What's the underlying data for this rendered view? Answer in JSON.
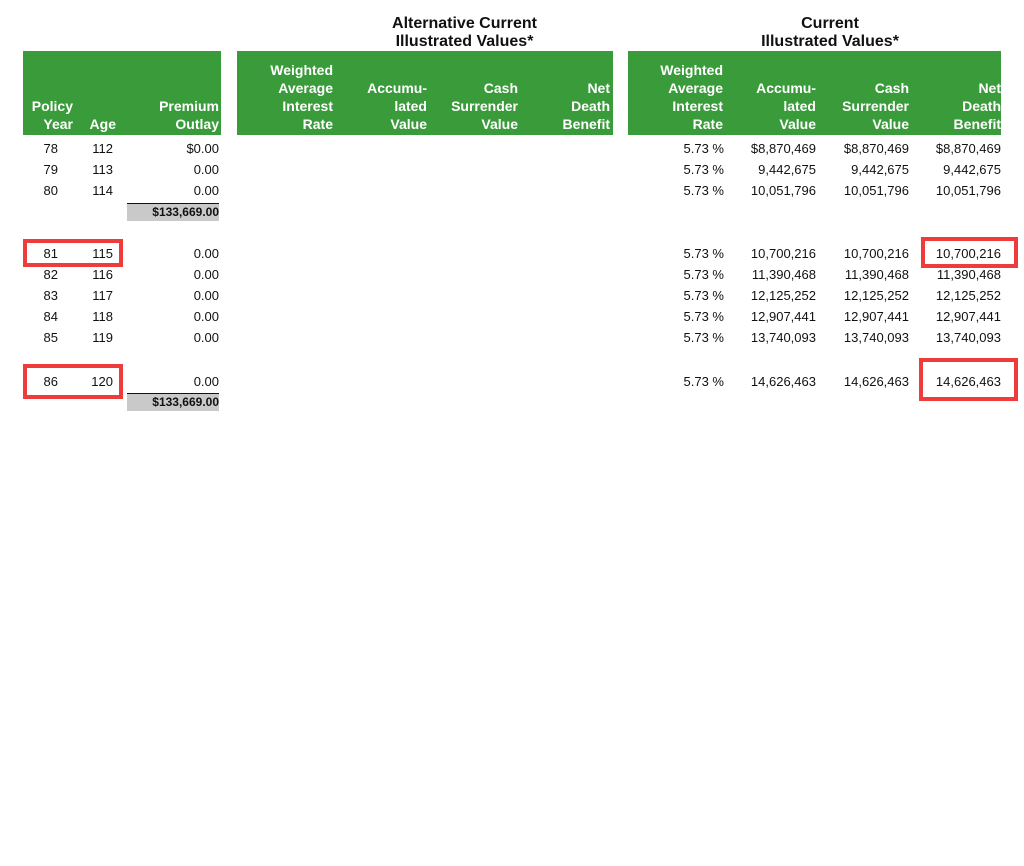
{
  "titles": {
    "alternative": {
      "line1": "Alternative Current",
      "line2": "Illustrated Values*"
    },
    "current": {
      "line1": "Current",
      "line2": "Illustrated Values*"
    }
  },
  "headers": {
    "left": {
      "policy_year": [
        "Policy",
        "Year"
      ],
      "age": [
        "Age"
      ],
      "premium_outlay": [
        "Premium",
        "Outlay"
      ]
    },
    "alternative": {
      "interest_rate": [
        "Weighted",
        "Average",
        "Interest",
        "Rate"
      ],
      "accumulated_value": [
        "Accumu-",
        "lated",
        "Value"
      ],
      "cash_surrender_value": [
        "Cash",
        "Surrender",
        "Value"
      ],
      "net_death_benefit": [
        "Net",
        "Death",
        "Benefit"
      ]
    },
    "current": {
      "interest_rate": [
        "Weighted",
        "Average",
        "Interest",
        "Rate"
      ],
      "accumulated_value": [
        "Accumu-",
        "lated",
        "Value"
      ],
      "cash_surrender_value": [
        "Cash",
        "Surrender",
        "Value"
      ],
      "net_death_benefit": [
        "Net",
        "Death",
        "Benefit"
      ]
    }
  },
  "rows": [
    {
      "year": "78",
      "age": "112",
      "premium": "$0.00",
      "rate": "5.73 %",
      "accumulated": "$8,870,469",
      "cash_surrender": "$8,870,469",
      "death_benefit": "$8,870,469"
    },
    {
      "year": "79",
      "age": "113",
      "premium": "0.00",
      "rate": "5.73 %",
      "accumulated": "9,442,675",
      "cash_surrender": "9,442,675",
      "death_benefit": "9,442,675"
    },
    {
      "year": "80",
      "age": "114",
      "premium": "0.00",
      "rate": "5.73 %",
      "accumulated": "10,051,796",
      "cash_surrender": "10,051,796",
      "death_benefit": "10,051,796"
    },
    {
      "year": "81",
      "age": "115",
      "premium": "0.00",
      "rate": "5.73 %",
      "accumulated": "10,700,216",
      "cash_surrender": "10,700,216",
      "death_benefit": "10,700,216"
    },
    {
      "year": "82",
      "age": "116",
      "premium": "0.00",
      "rate": "5.73 %",
      "accumulated": "11,390,468",
      "cash_surrender": "11,390,468",
      "death_benefit": "11,390,468"
    },
    {
      "year": "83",
      "age": "117",
      "premium": "0.00",
      "rate": "5.73 %",
      "accumulated": "12,125,252",
      "cash_surrender": "12,125,252",
      "death_benefit": "12,125,252"
    },
    {
      "year": "84",
      "age": "118",
      "premium": "0.00",
      "rate": "5.73 %",
      "accumulated": "12,907,441",
      "cash_surrender": "12,907,441",
      "death_benefit": "12,907,441"
    },
    {
      "year": "85",
      "age": "119",
      "premium": "0.00",
      "rate": "5.73 %",
      "accumulated": "13,740,093",
      "cash_surrender": "13,740,093",
      "death_benefit": "13,740,093"
    },
    {
      "year": "86",
      "age": "120",
      "premium": "0.00",
      "rate": "5.73 %",
      "accumulated": "14,626,463",
      "cash_surrender": "14,626,463",
      "death_benefit": "14,626,463"
    }
  ],
  "subtotals": [
    "$133,669.00",
    "$133,669.00"
  ],
  "colors": {
    "header_green": "#3a9b3b",
    "highlight_red": "#ee3b3b",
    "total_gray": "#c9c9c9"
  }
}
